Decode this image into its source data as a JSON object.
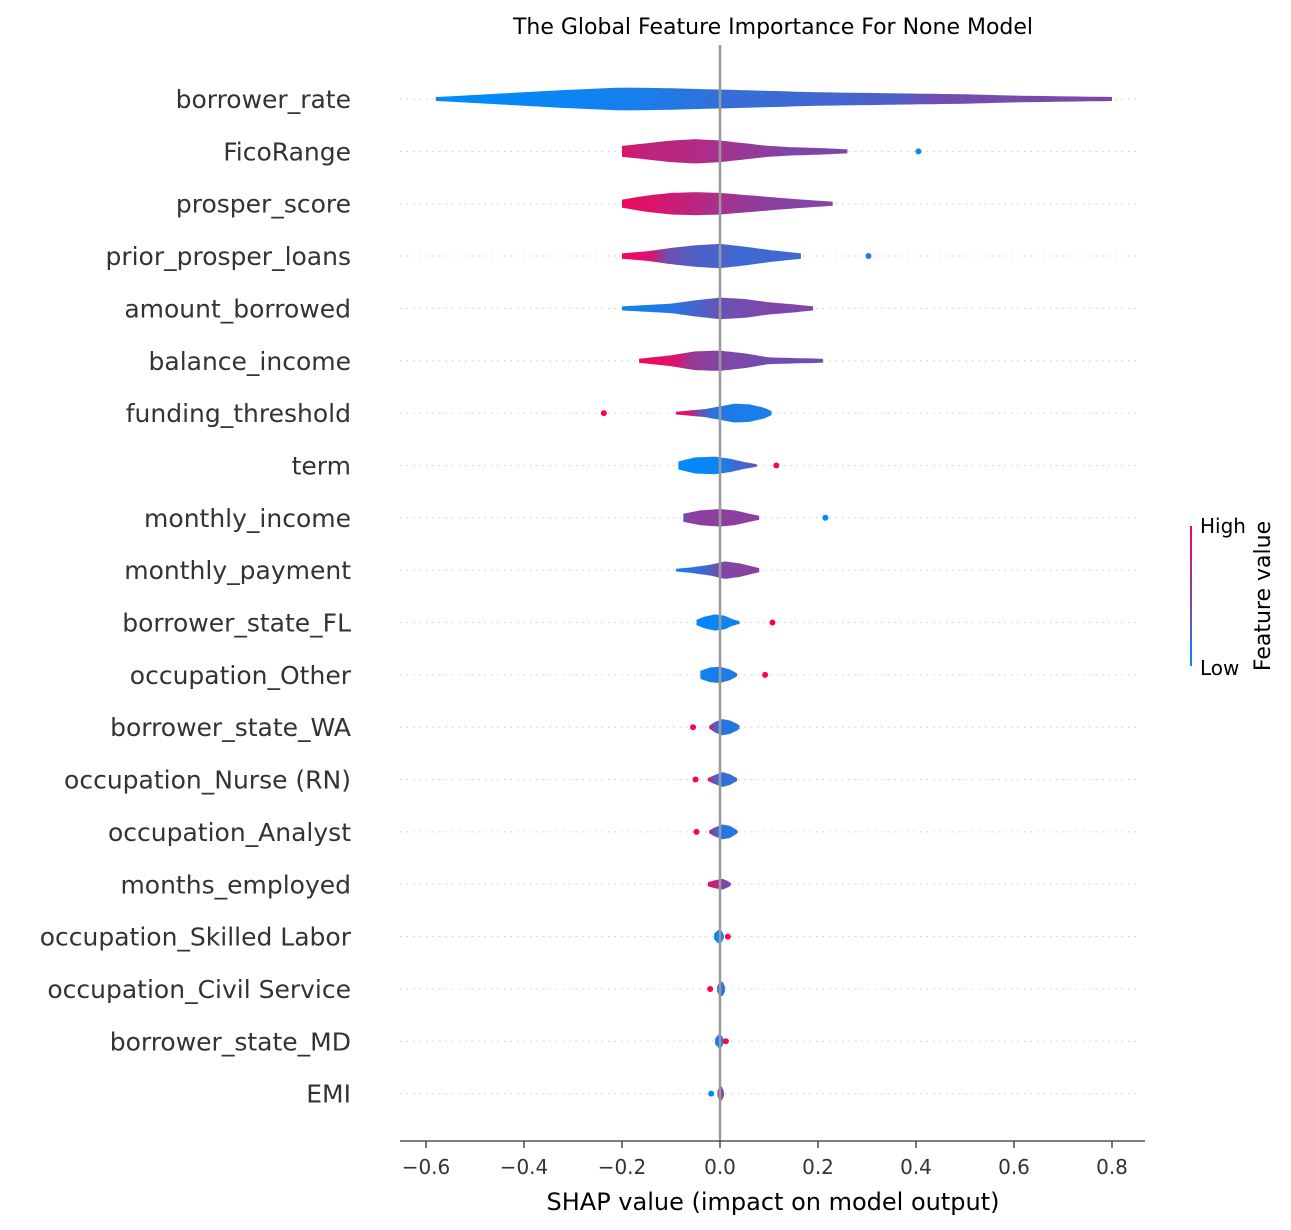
{
  "chart_data": {
    "type": "violin",
    "title": "The Global Feature Importance For None Model",
    "xlabel": "SHAP value (impact on model output)",
    "xlim": [
      -0.65,
      0.86
    ],
    "xticks": [
      -0.6,
      -0.4,
      -0.2,
      0.0,
      0.2,
      0.4,
      0.6,
      0.8
    ],
    "xtick_labels": [
      "−0.6",
      "−0.4",
      "−0.2",
      "0.0",
      "0.2",
      "0.4",
      "0.6",
      "0.8"
    ],
    "colorbar": {
      "title": "Feature value",
      "high_label": "High",
      "low_label": "Low",
      "low_color": "#008bfb",
      "high_color": "#ff0052"
    },
    "features": [
      {
        "name": "borrower_rate",
        "min": -0.58,
        "max": 0.8,
        "profile": [
          [
            -0.58,
            0.015
          ],
          [
            -0.55,
            0.02
          ],
          [
            -0.45,
            0.04
          ],
          [
            -0.3,
            0.07
          ],
          [
            -0.2,
            0.085
          ],
          [
            -0.1,
            0.08
          ],
          [
            0.0,
            0.07
          ],
          [
            0.1,
            0.06
          ],
          [
            0.2,
            0.05
          ],
          [
            0.3,
            0.045
          ],
          [
            0.4,
            0.04
          ],
          [
            0.5,
            0.035
          ],
          [
            0.6,
            0.025
          ],
          [
            0.7,
            0.02
          ],
          [
            0.8,
            0.015
          ]
        ],
        "colors": [
          [
            -0.58,
            0.0
          ],
          [
            -0.3,
            0.05
          ],
          [
            -0.15,
            0.1
          ],
          [
            0.0,
            0.2
          ],
          [
            0.35,
            0.3
          ],
          [
            0.45,
            0.45
          ],
          [
            0.8,
            0.5
          ]
        ],
        "dots": []
      },
      {
        "name": "FicoRange",
        "min": -0.2,
        "max": 0.26,
        "profile": [
          [
            -0.2,
            0.04
          ],
          [
            -0.15,
            0.06
          ],
          [
            -0.1,
            0.08
          ],
          [
            -0.05,
            0.09
          ],
          [
            0.0,
            0.08
          ],
          [
            0.05,
            0.06
          ],
          [
            0.1,
            0.04
          ],
          [
            0.15,
            0.03
          ],
          [
            0.2,
            0.025
          ],
          [
            0.26,
            0.015
          ]
        ],
        "colors": [
          [
            -0.2,
            0.85
          ],
          [
            -0.15,
            0.75
          ],
          [
            -0.05,
            0.7
          ],
          [
            0.05,
            0.6
          ],
          [
            0.15,
            0.5
          ],
          [
            0.26,
            0.5
          ]
        ],
        "dots": [
          [
            0.405,
            0.1
          ]
        ]
      },
      {
        "name": "prosper_score",
        "min": -0.2,
        "max": 0.23,
        "profile": [
          [
            -0.2,
            0.03
          ],
          [
            -0.15,
            0.06
          ],
          [
            -0.1,
            0.08
          ],
          [
            -0.05,
            0.085
          ],
          [
            0.0,
            0.08
          ],
          [
            0.05,
            0.065
          ],
          [
            0.1,
            0.05
          ],
          [
            0.15,
            0.035
          ],
          [
            0.23,
            0.015
          ]
        ],
        "colors": [
          [
            -0.2,
            0.95
          ],
          [
            -0.1,
            0.8
          ],
          [
            0.0,
            0.65
          ],
          [
            0.1,
            0.55
          ],
          [
            0.23,
            0.5
          ]
        ],
        "dots": []
      },
      {
        "name": "prior_prosper_loans",
        "min": -0.2,
        "max": 0.165,
        "profile": [
          [
            -0.2,
            0.02
          ],
          [
            -0.15,
            0.035
          ],
          [
            -0.1,
            0.06
          ],
          [
            -0.05,
            0.08
          ],
          [
            0.0,
            0.09
          ],
          [
            0.05,
            0.07
          ],
          [
            0.1,
            0.045
          ],
          [
            0.165,
            0.02
          ]
        ],
        "colors": [
          [
            -0.2,
            0.95
          ],
          [
            -0.14,
            0.85
          ],
          [
            -0.11,
            0.45
          ],
          [
            -0.05,
            0.3
          ],
          [
            0.05,
            0.25
          ],
          [
            0.165,
            0.25
          ]
        ],
        "dots": [
          [
            0.303,
            0.1
          ]
        ]
      },
      {
        "name": "amount_borrowed",
        "min": -0.2,
        "max": 0.19,
        "profile": [
          [
            -0.2,
            0.015
          ],
          [
            -0.1,
            0.035
          ],
          [
            -0.05,
            0.06
          ],
          [
            0.0,
            0.08
          ],
          [
            0.05,
            0.07
          ],
          [
            0.1,
            0.045
          ],
          [
            0.15,
            0.03
          ],
          [
            0.19,
            0.015
          ]
        ],
        "colors": [
          [
            -0.2,
            0.05
          ],
          [
            -0.1,
            0.15
          ],
          [
            0.0,
            0.4
          ],
          [
            0.1,
            0.5
          ],
          [
            0.19,
            0.5
          ]
        ],
        "dots": []
      },
      {
        "name": "balance_income",
        "min": -0.165,
        "max": 0.21,
        "profile": [
          [
            -0.165,
            0.015
          ],
          [
            -0.1,
            0.04
          ],
          [
            -0.05,
            0.07
          ],
          [
            0.0,
            0.075
          ],
          [
            0.05,
            0.055
          ],
          [
            0.1,
            0.025
          ],
          [
            0.15,
            0.02
          ],
          [
            0.21,
            0.015
          ]
        ],
        "colors": [
          [
            -0.165,
            0.95
          ],
          [
            -0.09,
            0.85
          ],
          [
            -0.06,
            0.6
          ],
          [
            0.0,
            0.5
          ],
          [
            0.1,
            0.45
          ],
          [
            0.21,
            0.45
          ]
        ],
        "dots": []
      },
      {
        "name": "funding_threshold",
        "min": -0.09,
        "max": 0.105,
        "profile": [
          [
            -0.09,
            0.01
          ],
          [
            -0.06,
            0.02
          ],
          [
            -0.03,
            0.03
          ],
          [
            0.0,
            0.05
          ],
          [
            0.03,
            0.07
          ],
          [
            0.06,
            0.065
          ],
          [
            0.09,
            0.04
          ],
          [
            0.105,
            0.015
          ]
        ],
        "colors": [
          [
            -0.09,
            0.95
          ],
          [
            -0.06,
            0.8
          ],
          [
            -0.04,
            0.4
          ],
          [
            -0.01,
            0.15
          ],
          [
            0.05,
            0.1
          ],
          [
            0.105,
            0.1
          ]
        ],
        "dots": [
          [
            -0.237,
            1.0
          ]
        ]
      },
      {
        "name": "term",
        "min": -0.085,
        "max": 0.075,
        "profile": [
          [
            -0.085,
            0.03
          ],
          [
            -0.05,
            0.06
          ],
          [
            -0.01,
            0.065
          ],
          [
            0.02,
            0.05
          ],
          [
            0.05,
            0.025
          ],
          [
            0.075,
            0.01
          ]
        ],
        "colors": [
          [
            -0.085,
            0.0
          ],
          [
            0.0,
            0.05
          ],
          [
            0.03,
            0.25
          ],
          [
            0.075,
            0.35
          ]
        ],
        "dots": [
          [
            0.115,
            1.0
          ]
        ]
      },
      {
        "name": "monthly_income",
        "min": -0.075,
        "max": 0.08,
        "profile": [
          [
            -0.075,
            0.03
          ],
          [
            -0.04,
            0.055
          ],
          [
            0.0,
            0.065
          ],
          [
            0.03,
            0.055
          ],
          [
            0.06,
            0.03
          ],
          [
            0.08,
            0.015
          ]
        ],
        "colors": [
          [
            -0.075,
            0.4
          ],
          [
            -0.06,
            0.55
          ],
          [
            0.0,
            0.55
          ],
          [
            0.08,
            0.55
          ]
        ],
        "dots": [
          [
            0.215,
            0.0
          ]
        ]
      },
      {
        "name": "monthly_payment",
        "min": -0.09,
        "max": 0.08,
        "profile": [
          [
            -0.09,
            0.01
          ],
          [
            -0.06,
            0.02
          ],
          [
            -0.02,
            0.04
          ],
          [
            0.01,
            0.065
          ],
          [
            0.04,
            0.05
          ],
          [
            0.08,
            0.015
          ]
        ],
        "colors": [
          [
            -0.09,
            0.1
          ],
          [
            -0.03,
            0.25
          ],
          [
            0.0,
            0.5
          ],
          [
            0.08,
            0.55
          ]
        ],
        "dots": []
      },
      {
        "name": "borrower_state_FL",
        "min": -0.048,
        "max": 0.04,
        "profile": [
          [
            -0.048,
            0.02
          ],
          [
            -0.03,
            0.045
          ],
          [
            -0.01,
            0.06
          ],
          [
            0.01,
            0.05
          ],
          [
            0.025,
            0.025
          ],
          [
            0.04,
            0.01
          ]
        ],
        "colors": [
          [
            -0.048,
            0.02
          ],
          [
            0.04,
            0.05
          ]
        ],
        "dots": [
          [
            0.107,
            1.0
          ]
        ]
      },
      {
        "name": "occupation_Other",
        "min": -0.04,
        "max": 0.035,
        "profile": [
          [
            -0.04,
            0.03
          ],
          [
            -0.02,
            0.055
          ],
          [
            0.0,
            0.06
          ],
          [
            0.02,
            0.04
          ],
          [
            0.035,
            0.01
          ]
        ],
        "colors": [
          [
            -0.04,
            0.05
          ],
          [
            0.035,
            0.15
          ]
        ],
        "dots": [
          [
            0.092,
            1.0
          ]
        ]
      },
      {
        "name": "borrower_state_WA",
        "min": -0.022,
        "max": 0.04,
        "profile": [
          [
            -0.022,
            0.01
          ],
          [
            -0.01,
            0.04
          ],
          [
            0.005,
            0.06
          ],
          [
            0.02,
            0.05
          ],
          [
            0.035,
            0.025
          ],
          [
            0.04,
            0.01
          ]
        ],
        "colors": [
          [
            -0.022,
            0.85
          ],
          [
            -0.008,
            0.3
          ],
          [
            0.0,
            0.15
          ],
          [
            0.04,
            0.15
          ]
        ],
        "dots": [
          [
            -0.055,
            1.0
          ]
        ]
      },
      {
        "name": "occupation_Nurse (RN)",
        "min": -0.025,
        "max": 0.035,
        "profile": [
          [
            -0.025,
            0.01
          ],
          [
            -0.01,
            0.035
          ],
          [
            0.005,
            0.055
          ],
          [
            0.02,
            0.04
          ],
          [
            0.035,
            0.01
          ]
        ],
        "colors": [
          [
            -0.025,
            0.9
          ],
          [
            -0.01,
            0.3
          ],
          [
            0.0,
            0.2
          ],
          [
            0.035,
            0.2
          ]
        ],
        "dots": [
          [
            -0.05,
            1.0
          ]
        ]
      },
      {
        "name": "occupation_Analyst",
        "min": -0.022,
        "max": 0.036,
        "profile": [
          [
            -0.022,
            0.01
          ],
          [
            -0.01,
            0.035
          ],
          [
            0.005,
            0.055
          ],
          [
            0.02,
            0.045
          ],
          [
            0.036,
            0.01
          ]
        ],
        "colors": [
          [
            -0.022,
            0.9
          ],
          [
            -0.01,
            0.3
          ],
          [
            0.0,
            0.15
          ],
          [
            0.036,
            0.15
          ]
        ],
        "dots": [
          [
            -0.048,
            1.0
          ]
        ]
      },
      {
        "name": "months_employed",
        "min": -0.025,
        "max": 0.022,
        "profile": [
          [
            -0.025,
            0.015
          ],
          [
            -0.01,
            0.03
          ],
          [
            0.005,
            0.04
          ],
          [
            0.015,
            0.025
          ],
          [
            0.022,
            0.01
          ]
        ],
        "colors": [
          [
            -0.025,
            0.9
          ],
          [
            -0.005,
            0.7
          ],
          [
            0.005,
            0.5
          ],
          [
            0.022,
            0.45
          ]
        ],
        "dots": []
      },
      {
        "name": "occupation_Skilled Labor",
        "min": -0.012,
        "max": 0.008,
        "profile": [
          [
            -0.012,
            0.02
          ],
          [
            -0.004,
            0.05
          ],
          [
            0.004,
            0.04
          ],
          [
            0.008,
            0.01
          ]
        ],
        "colors": [
          [
            -0.012,
            0.03
          ],
          [
            0.008,
            0.05
          ]
        ],
        "dots": [
          [
            0.016,
            1.0
          ]
        ]
      },
      {
        "name": "occupation_Civil Service",
        "min": -0.006,
        "max": 0.01,
        "profile": [
          [
            -0.006,
            0.02
          ],
          [
            0.0,
            0.055
          ],
          [
            0.006,
            0.05
          ],
          [
            0.01,
            0.02
          ]
        ],
        "colors": [
          [
            -0.006,
            0.2
          ],
          [
            0.01,
            0.15
          ]
        ],
        "dots": [
          [
            -0.02,
            1.0
          ]
        ]
      },
      {
        "name": "borrower_state_MD",
        "min": -0.01,
        "max": 0.008,
        "profile": [
          [
            -0.01,
            0.02
          ],
          [
            -0.003,
            0.05
          ],
          [
            0.004,
            0.04
          ],
          [
            0.008,
            0.01
          ]
        ],
        "colors": [
          [
            -0.01,
            0.1
          ],
          [
            0.008,
            0.15
          ]
        ],
        "dots": [
          [
            0.012,
            1.0
          ]
        ]
      },
      {
        "name": "EMI",
        "min": -0.005,
        "max": 0.008,
        "profile": [
          [
            -0.005,
            0.02
          ],
          [
            0.0,
            0.055
          ],
          [
            0.004,
            0.05
          ],
          [
            0.008,
            0.015
          ]
        ],
        "colors": [
          [
            -0.005,
            0.5
          ],
          [
            0.008,
            0.55
          ]
        ],
        "dots": [
          [
            -0.018,
            0.0
          ]
        ]
      }
    ]
  }
}
